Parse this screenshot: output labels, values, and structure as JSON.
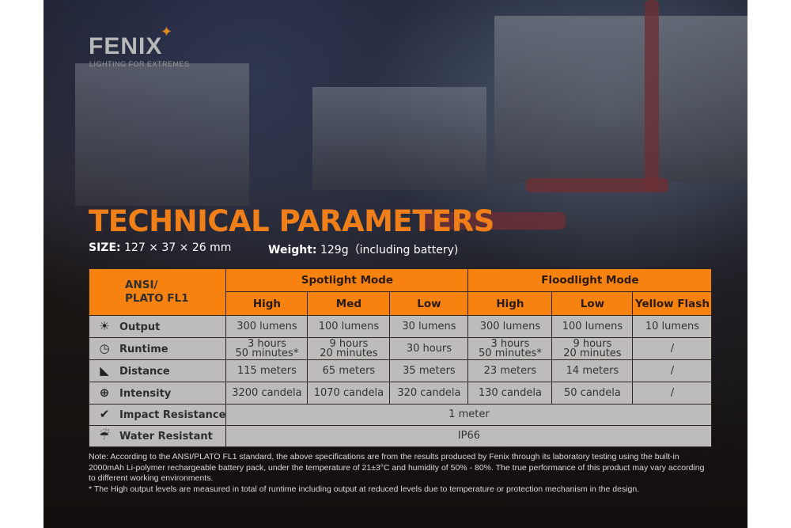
{
  "brand": {
    "name": "FENIX",
    "tagline": "LIGHTING FOR EXTREMES"
  },
  "title": "TECHNICAL PARAMETERS",
  "size": {
    "label": "SIZE:",
    "value": "127 × 37 × 26 mm"
  },
  "weight": {
    "label": "Weight:",
    "value": "129g（including battery)"
  },
  "table": {
    "corner": [
      "ANSI/",
      "PLATO  FL1"
    ],
    "groups": [
      "Spotlight Mode",
      "Floodlight Mode"
    ],
    "modes": [
      "High",
      "Med",
      "Low",
      "High",
      "Low",
      "Yellow Flash"
    ],
    "rows": [
      {
        "icon": "output-icon",
        "label": "Output",
        "cells": [
          "300 lumens",
          "100 lumens",
          "30 lumens",
          "300 lumens",
          "100 lumens",
          "10 lumens"
        ]
      },
      {
        "icon": "clock-icon",
        "label": "Runtime",
        "cells": [
          [
            "3 hours",
            "50 minutes*"
          ],
          [
            "9 hours",
            "20 minutes"
          ],
          "30 hours",
          [
            "3 hours",
            "50 minutes*"
          ],
          [
            "9 hours",
            "20 minutes"
          ],
          "/"
        ]
      },
      {
        "icon": "distance-icon",
        "label": "Distance",
        "cells": [
          "115 meters",
          "65 meters",
          "35 meters",
          "23 meters",
          "14 meters",
          "/"
        ]
      },
      {
        "icon": "intensity-icon",
        "label": "Intensity",
        "cells": [
          "3200 candela",
          "1070 candela",
          "320 candela",
          "130 candela",
          "50 candela",
          "/"
        ]
      }
    ],
    "impact": {
      "icon": "impact-icon",
      "label": "Impact Resistance",
      "value": "1 meter"
    },
    "water": {
      "icon": "water-icon",
      "label": "Water Resistant",
      "value": "IP66"
    }
  },
  "note": "Note: According to the ANSI/PLATO FL1 standard, the above specifications are from the results produced by Fenix through its laboratory testing using the built-in 2000mAh Li-polymer rechargeable battery pack, under the temperature of 21±3°C and humidity of 50% - 80%. The true performance of this product may vary according to different working environments.",
  "footnote": "* The High output levels are measured in total of runtime including output at reduced levels due to temperature or protection mechanism in the design.",
  "colors": {
    "accent": "#f7820f",
    "title": "#f07f1a"
  }
}
